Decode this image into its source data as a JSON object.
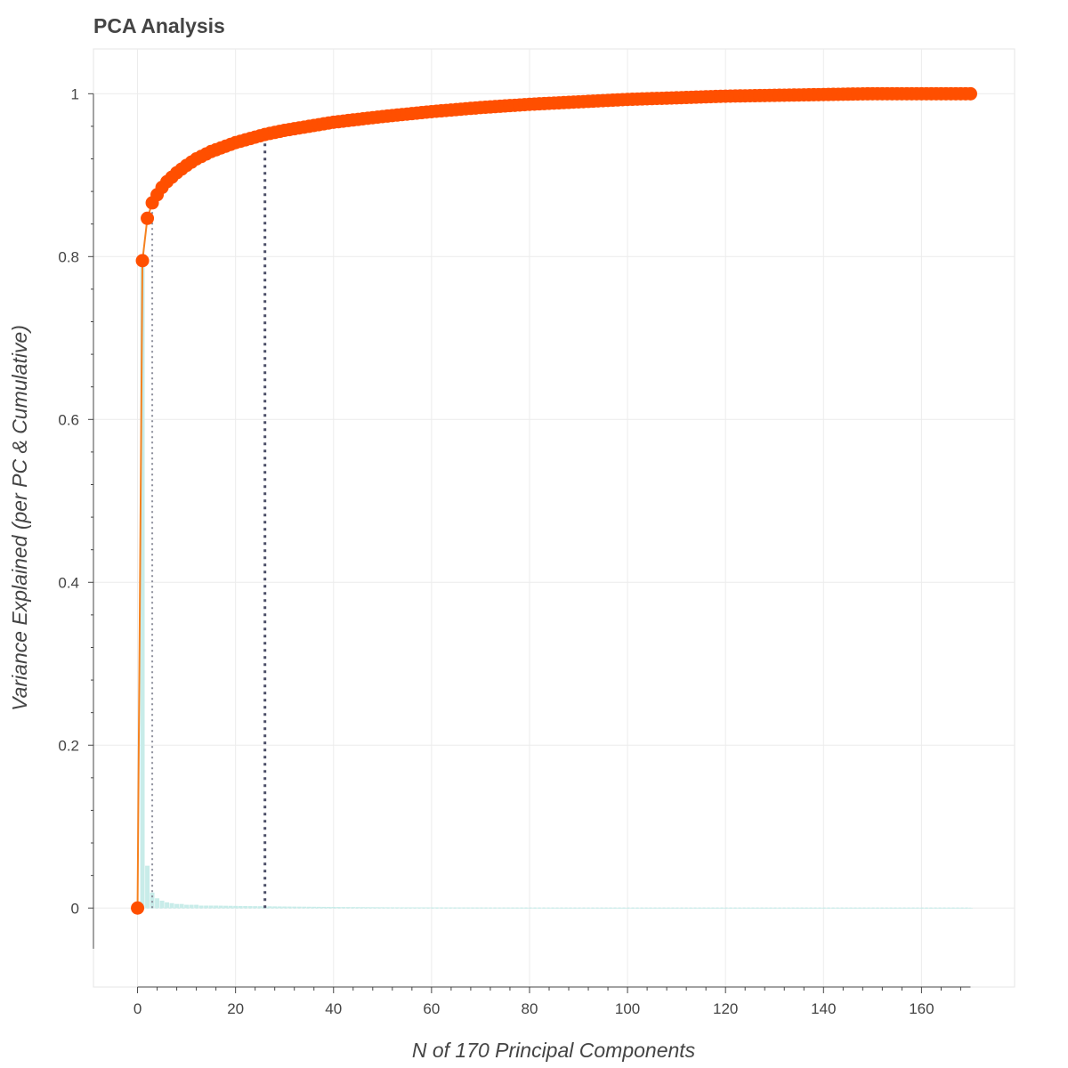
{
  "chart_data": {
    "type": "line",
    "title": "PCA Analysis",
    "xlabel": "N of 170 Principal Components",
    "ylabel": "Variance Explained (per PC & Cumulative)",
    "xlim": [
      -9,
      179
    ],
    "ylim": [
      -0.097,
      1.055
    ],
    "xticks": [
      0,
      20,
      40,
      60,
      80,
      100,
      120,
      140,
      160
    ],
    "xtick_labels": [
      "0",
      "20",
      "40",
      "60",
      "80",
      "100",
      "120",
      "140",
      "160"
    ],
    "yticks": [
      0,
      0.2,
      0.4,
      0.6,
      0.8,
      1
    ],
    "ytick_labels": [
      "0",
      "0.2",
      "0.4",
      "0.6",
      "0.8",
      "1"
    ],
    "grid": true,
    "n_components": 170,
    "series": [
      {
        "kind": "cumulative",
        "curve_points": [
          [
            0,
            0
          ],
          [
            1,
            0.795
          ],
          [
            2,
            0.847
          ],
          [
            3,
            0.866
          ],
          [
            4,
            0.876
          ],
          [
            5,
            0.885
          ],
          [
            6,
            0.892
          ],
          [
            8,
            0.903
          ],
          [
            10,
            0.912
          ],
          [
            12,
            0.92
          ],
          [
            15,
            0.929
          ],
          [
            20,
            0.94
          ],
          [
            26,
            0.95
          ],
          [
            30,
            0.955
          ],
          [
            40,
            0.965
          ],
          [
            50,
            0.972
          ],
          [
            60,
            0.978
          ],
          [
            70,
            0.983
          ],
          [
            80,
            0.987
          ],
          [
            90,
            0.99
          ],
          [
            100,
            0.993
          ],
          [
            110,
            0.995
          ],
          [
            120,
            0.997
          ],
          [
            130,
            0.998
          ],
          [
            140,
            0.999
          ],
          [
            150,
            1.0
          ],
          [
            160,
            1.0
          ],
          [
            170,
            1.0
          ]
        ]
      },
      {
        "kind": "per_component",
        "values_head": [
          0,
          0.795,
          0.052,
          0.019,
          0.012,
          0.009,
          0.007,
          0.006,
          0.005,
          0.005,
          0.004,
          0.004,
          0.004,
          0.003,
          0.003,
          0.003
        ],
        "tail_decay": 0.003
      }
    ],
    "reference_lines": [
      {
        "x": 3,
        "y": 0.866,
        "style": "light-dotted"
      },
      {
        "x": 26,
        "y": 0.95,
        "style": "dark-dotted"
      }
    ],
    "colors": {
      "marker": "#ff4f00",
      "line": "#f58220",
      "bars": "#c8ece9",
      "ref_light": "#8d8f9c",
      "ref_dark": "#4a4d66",
      "grid": "#ececec",
      "frame": "#e5e5e5",
      "text": "#444444"
    }
  }
}
